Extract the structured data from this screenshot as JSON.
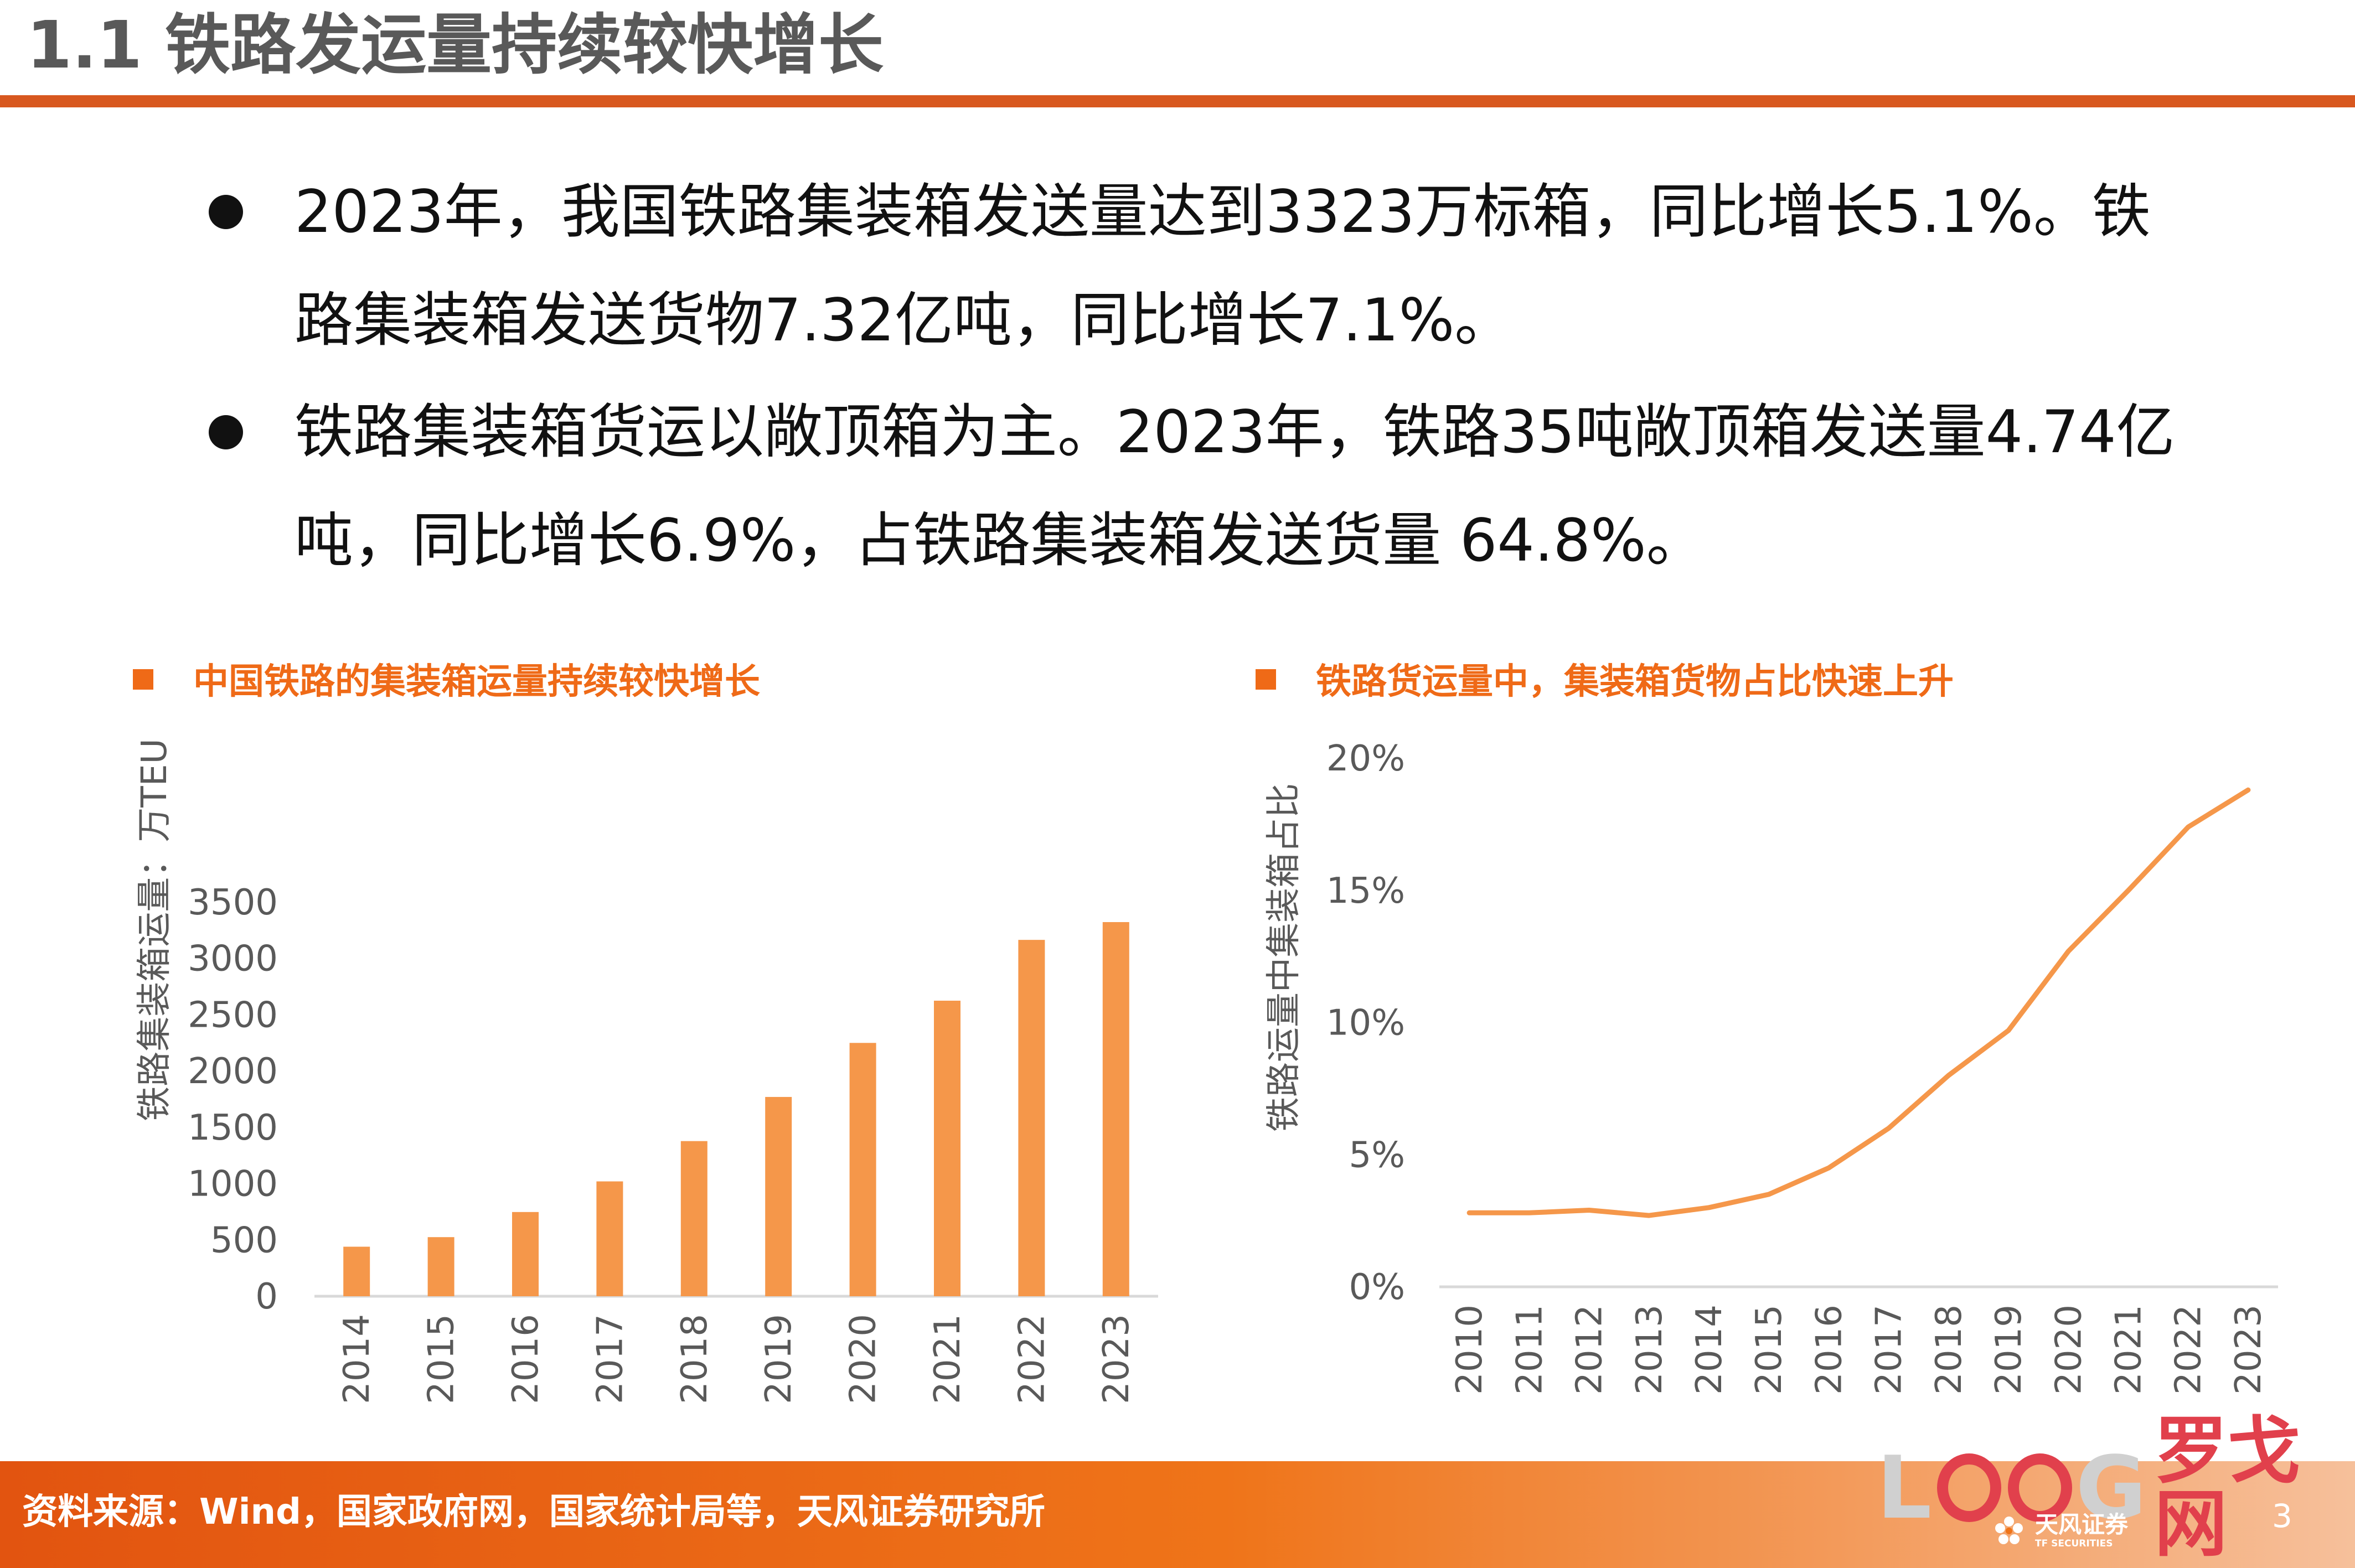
{
  "header": {
    "title": "1.1 铁路发运量持续较快增长"
  },
  "bullets": [
    {
      "text": "2023年，我国铁路集装箱发送量达到3323万标箱，同比增长5.1%。铁\n路集装箱发送货物7.32亿吨，同比增长7.1%。"
    },
    {
      "text": "铁路集装箱货运以敞顶箱为主。2023年，铁路35吨敞顶箱发送量4.74亿\n吨，同比增长6.9%，占铁路集装箱发送货量 64.8%。"
    }
  ],
  "chart_data": [
    {
      "type": "bar",
      "title": "中国铁路的集装箱运量持续较快增长",
      "ylabel": "铁路集装箱运量：万TEU",
      "xlabel": "",
      "categories": [
        "2014",
        "2015",
        "2016",
        "2017",
        "2018",
        "2019",
        "2020",
        "2021",
        "2022",
        "2023"
      ],
      "values": [
        440,
        525,
        748,
        1020,
        1378,
        1770,
        2250,
        2625,
        3165,
        3323
      ],
      "ylim": [
        0,
        3500
      ],
      "yticks": [
        "0",
        "500",
        "1000",
        "1500",
        "2000",
        "2500",
        "3000",
        "3500"
      ],
      "grid": false,
      "legend": "none",
      "color": "#f5974a"
    },
    {
      "type": "line",
      "title": "铁路货运量中，集装箱货物占比快速上升",
      "ylabel": "铁路运量中集装箱占比",
      "xlabel": "",
      "x": [
        "2010",
        "2011",
        "2012",
        "2013",
        "2014",
        "2015",
        "2016",
        "2017",
        "2018",
        "2019",
        "2020",
        "2021",
        "2022",
        "2023"
      ],
      "values": [
        2.8,
        2.8,
        2.9,
        2.7,
        3.0,
        3.5,
        4.5,
        6.0,
        8.0,
        9.7,
        12.7,
        15.0,
        17.4,
        18.8
      ],
      "ylim": [
        0,
        20
      ],
      "yticks": [
        "0%",
        "5%",
        "10%",
        "15%",
        "20%"
      ],
      "grid": false,
      "legend": "none",
      "color": "#f5974a"
    }
  ],
  "footer": {
    "source": "资料来源：Wind，国家政府网，国家统计局等，天风证券研究所",
    "page_number": "3"
  },
  "watermark": {
    "letters": [
      "L",
      "G"
    ],
    "cn": "罗戈网"
  },
  "brand": {
    "name": "天风证券",
    "sub": "TF SECURITIES"
  }
}
